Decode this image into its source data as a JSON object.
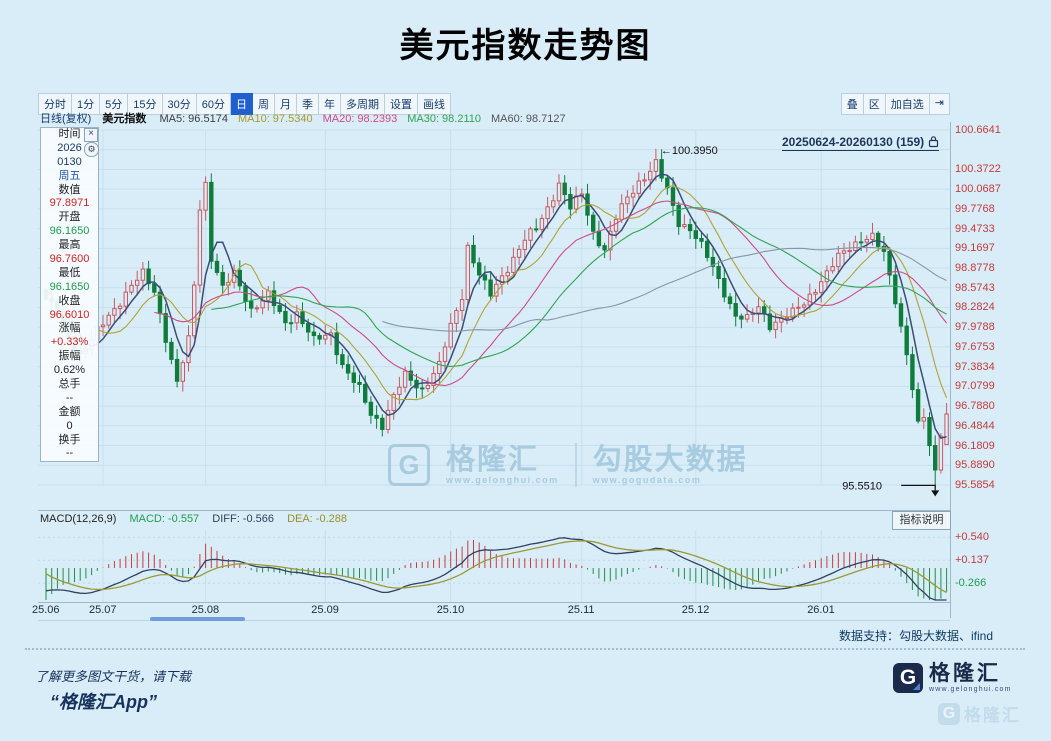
{
  "page": {
    "title": "美元指数走势图",
    "bg": "#d9edf8"
  },
  "toolbar": {
    "periods": [
      "分时",
      "1分",
      "5分",
      "15分",
      "30分",
      "60分",
      "日",
      "周",
      "月",
      "季",
      "年",
      "多周期",
      "设置",
      "画线"
    ],
    "active_period": "日",
    "right_buttons": [
      "叠",
      "区",
      "加自选",
      "⇥"
    ]
  },
  "info_bar": {
    "mode": "日线(复权)",
    "symbol": "美元指数",
    "ma_items": [
      {
        "label": "MA5:",
        "value": "96.5174",
        "color": "#3d3d3d"
      },
      {
        "label": "MA10:",
        "value": "97.5340",
        "color": "#a89a2e"
      },
      {
        "label": "MA20:",
        "value": "98.2393",
        "color": "#cf4a82"
      },
      {
        "label": "MA30:",
        "value": "98.2110",
        "color": "#2fa44f"
      },
      {
        "label": "MA60:",
        "value": "98.7127",
        "color": "#555555"
      }
    ]
  },
  "range_label": "20250624-20260130 (159)",
  "left_panel": {
    "rows": [
      {
        "text": "时间",
        "color": "#222222"
      },
      {
        "text": "2026",
        "color": "#1a3c6e"
      },
      {
        "text": "0130",
        "color": "#1a3c6e"
      },
      {
        "text": "周五",
        "color": "#2255aa"
      },
      {
        "text": "数值",
        "color": "#222222"
      },
      {
        "text": "97.8971",
        "color": "#cc2222"
      },
      {
        "text": "开盘",
        "color": "#222222"
      },
      {
        "text": "96.1650",
        "color": "#1f9d4d"
      },
      {
        "text": "最高",
        "color": "#222222"
      },
      {
        "text": "96.7600",
        "color": "#cc2222"
      },
      {
        "text": "最低",
        "color": "#222222"
      },
      {
        "text": "96.1650",
        "color": "#1f9d4d"
      },
      {
        "text": "收盘",
        "color": "#222222"
      },
      {
        "text": "96.6010",
        "color": "#cc2222"
      },
      {
        "text": "涨幅",
        "color": "#222222"
      },
      {
        "text": "+0.33%",
        "color": "#cc2222"
      },
      {
        "text": "振幅",
        "color": "#222222"
      },
      {
        "text": "0.62%",
        "color": "#222222"
      },
      {
        "text": "总手",
        "color": "#222222"
      },
      {
        "text": "--",
        "color": "#222222"
      },
      {
        "text": "金额",
        "color": "#222222"
      },
      {
        "text": "0",
        "color": "#222222"
      },
      {
        "text": "换手",
        "color": "#222222"
      },
      {
        "text": "--",
        "color": "#222222"
      }
    ]
  },
  "annotations": {
    "high_text": "←100.3950",
    "low_text": "95.5510"
  },
  "macd_panel": {
    "formula": "MACD(12,26,9)",
    "macd": "MACD: -0.557",
    "diff": "DIFF: -0.566",
    "dea": "DEA: -0.288",
    "button": "指标说明",
    "axis": [
      {
        "text": "+0.540",
        "color": "#c43b3b"
      },
      {
        "text": "+0.137",
        "color": "#c43b3b"
      },
      {
        "text": "-0.266",
        "color": "#1f9d4d"
      }
    ]
  },
  "watermark": {
    "logo_letter": "G",
    "glh_name": "格隆汇",
    "glh_url": "www.gelonghui.com",
    "gogu_name": "勾股大数据",
    "gogu_url": "www.gogudata.com"
  },
  "footer": {
    "support": "数据支持：勾股大数据、ifind",
    "promo_line1": "了解更多图文干货，请下载",
    "promo_line2": "“格隆汇App”",
    "logo_letter": "G",
    "logo_text": "格隆汇",
    "logo_url": "www.gelonghui.com",
    "faded_logo_text": "格隆汇"
  },
  "chart_data": {
    "type": "candlestick",
    "title": "美元指数走势图",
    "symbol": "美元指数",
    "period": "日线(复权)",
    "date_range": "20250624-20260130",
    "bars": 159,
    "price_axis_values": [
      100.6641,
      100.3722,
      100.0687,
      99.7768,
      99.4733,
      99.1697,
      98.8778,
      98.5743,
      98.2824,
      97.9788,
      97.6753,
      97.3834,
      97.0799,
      96.788,
      96.4844,
      96.1809,
      95.889,
      95.5854
    ],
    "x_tick_labels": [
      "25.06",
      "25.07",
      "25.08",
      "25.09",
      "25.10",
      "25.11",
      "25.12",
      "26.01"
    ],
    "x_tick_days": [
      0,
      10,
      28,
      49,
      71,
      94,
      114,
      136
    ],
    "annotated_high": 100.395,
    "annotated_low": 95.551,
    "last_bar": {
      "date": "2026-01-30",
      "weekday": "周五",
      "open": 96.165,
      "high": 96.76,
      "low": 96.165,
      "close": 96.601,
      "change_pct": "+0.33%",
      "amplitude": "0.62%"
    },
    "ma_values": {
      "MA5": 96.5174,
      "MA10": 97.534,
      "MA20": 98.2393,
      "MA30": 98.211,
      "MA60": 98.7127
    },
    "macd_values": {
      "MACD": -0.557,
      "DIFF": -0.566,
      "DEA": -0.288
    },
    "macd_axis_values": [
      0.54,
      0.137,
      -0.266
    ],
    "ma_periods": [
      5,
      10,
      20,
      30,
      60
    ],
    "ma_line_colors": [
      "#3b4d75",
      "#b0a23a",
      "#cf4a82",
      "#2fa44f",
      "#8895a5"
    ],
    "up_color": "#c9595f",
    "down_color": "#0e7d3c",
    "keyframes": [
      [
        0,
        98.25
      ],
      [
        2,
        98.05
      ],
      [
        4,
        97.7
      ],
      [
        6,
        97.45
      ],
      [
        9,
        97.78
      ],
      [
        12,
        98.1
      ],
      [
        15,
        98.45
      ],
      [
        17,
        98.6
      ],
      [
        19,
        98.35
      ],
      [
        21,
        97.7
      ],
      [
        23,
        97.05
      ],
      [
        25,
        97.65
      ],
      [
        26,
        98.45
      ],
      [
        27,
        99.55
      ],
      [
        28,
        99.9
      ],
      [
        29,
        98.85
      ],
      [
        31,
        98.4
      ],
      [
        33,
        98.6
      ],
      [
        36,
        98.1
      ],
      [
        39,
        98.3
      ],
      [
        42,
        97.9
      ],
      [
        44,
        98.05
      ],
      [
        47,
        97.65
      ],
      [
        50,
        97.75
      ],
      [
        52,
        97.3
      ],
      [
        55,
        96.95
      ],
      [
        57,
        96.6
      ],
      [
        59,
        96.45
      ],
      [
        61,
        96.85
      ],
      [
        63,
        97.15
      ],
      [
        66,
        96.95
      ],
      [
        69,
        97.3
      ],
      [
        71,
        97.85
      ],
      [
        73,
        98.3
      ],
      [
        74,
        99.0
      ],
      [
        76,
        98.6
      ],
      [
        78,
        98.3
      ],
      [
        81,
        98.7
      ],
      [
        84,
        99.1
      ],
      [
        86,
        99.25
      ],
      [
        88,
        99.55
      ],
      [
        90,
        99.9
      ],
      [
        92,
        99.55
      ],
      [
        94,
        99.75
      ],
      [
        96,
        99.2
      ],
      [
        98,
        98.95
      ],
      [
        100,
        99.4
      ],
      [
        102,
        99.7
      ],
      [
        104,
        99.92
      ],
      [
        106,
        100.08
      ],
      [
        107,
        100.18
      ],
      [
        109,
        99.8
      ],
      [
        111,
        99.35
      ],
      [
        113,
        99.25
      ],
      [
        115,
        99.0
      ],
      [
        117,
        98.7
      ],
      [
        119,
        98.35
      ],
      [
        121,
        98.0
      ],
      [
        123,
        97.95
      ],
      [
        125,
        98.15
      ],
      [
        127,
        97.88
      ],
      [
        129,
        97.95
      ],
      [
        131,
        98.05
      ],
      [
        133,
        98.2
      ],
      [
        135,
        98.4
      ],
      [
        137,
        98.6
      ],
      [
        139,
        98.85
      ],
      [
        141,
        99.0
      ],
      [
        143,
        99.1
      ],
      [
        145,
        99.12
      ],
      [
        147,
        98.9
      ],
      [
        149,
        98.25
      ],
      [
        151,
        97.45
      ],
      [
        152,
        96.95
      ],
      [
        153,
        96.5
      ],
      [
        154,
        96.55
      ],
      [
        155,
        96.15
      ],
      [
        156,
        95.8
      ],
      [
        157,
        96.2835
      ],
      [
        158,
        96.601
      ]
    ],
    "overrides": {
      "107": {
        "h": 100.395
      },
      "156": {
        "l": 95.551
      },
      "158": {
        "o": 96.165,
        "h": 96.76,
        "l": 96.165,
        "c": 96.601
      }
    }
  }
}
